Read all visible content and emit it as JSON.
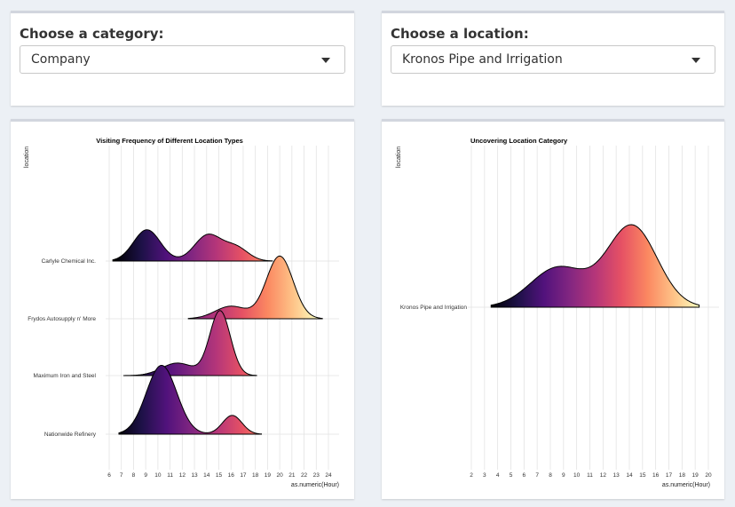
{
  "category": {
    "label": "Choose a category:",
    "value": "Company"
  },
  "location": {
    "label": "Choose a location:",
    "value": "Kronos Pipe and Irrigation"
  },
  "chart_data": [
    {
      "type": "ridgeline",
      "title": "Visiting Frequency of Different Location Types",
      "xlabel": "as.numeric(Hour)",
      "ylabel": "location",
      "xticks": [
        6,
        7,
        8,
        9,
        10,
        11,
        12,
        13,
        14,
        15,
        16,
        17,
        18,
        19,
        20,
        21,
        22,
        23,
        24
      ],
      "categories": [
        "Carlyle Chemical Inc.",
        "Frydos Autosupply n' More",
        "Maximum Iron and Steel",
        "Nationwide Refinery"
      ],
      "series": [
        {
          "name": "Carlyle Chemical Inc.",
          "peaks": [
            [
              9.1,
              0.75,
              1.1
            ],
            [
              14.1,
              0.62,
              1.1
            ],
            [
              16.4,
              0.32,
              1.0
            ]
          ],
          "range": [
            6.3,
            19.4
          ]
        },
        {
          "name": "Frydos Autosupply n' More",
          "peaks": [
            [
              16.0,
              0.3,
              1.3
            ],
            [
              20.0,
              1.5,
              1.1
            ]
          ],
          "range": [
            12.5,
            23.5
          ]
        },
        {
          "name": "Maximum Iron and Steel",
          "peaks": [
            [
              11.6,
              0.3,
              1.3
            ],
            [
              15.1,
              1.55,
              0.85
            ]
          ],
          "range": [
            7.2,
            18.1
          ]
        },
        {
          "name": "Nationwide Refinery",
          "peaks": [
            [
              10.3,
              1.65,
              1.25
            ],
            [
              16.1,
              0.45,
              0.8
            ]
          ],
          "range": [
            6.8,
            18.5
          ]
        }
      ],
      "colorscale": "magma"
    },
    {
      "type": "ridgeline",
      "title": "Uncovering Location Category",
      "xlabel": "as.numeric(Hour)",
      "ylabel": "location",
      "xticks": [
        2,
        3,
        4,
        5,
        6,
        7,
        8,
        9,
        10,
        11,
        12,
        13,
        14,
        15,
        16,
        17,
        18,
        19,
        20
      ],
      "categories": [
        "Kronos Pipe and Irrigation"
      ],
      "series": [
        {
          "name": "Kronos Pipe and Irrigation",
          "peaks": [
            [
              8.6,
              0.95,
              2.1
            ],
            [
              14.2,
              1.95,
              1.9
            ]
          ],
          "range": [
            3.5,
            19.3
          ]
        }
      ],
      "colorscale": "magma"
    }
  ]
}
